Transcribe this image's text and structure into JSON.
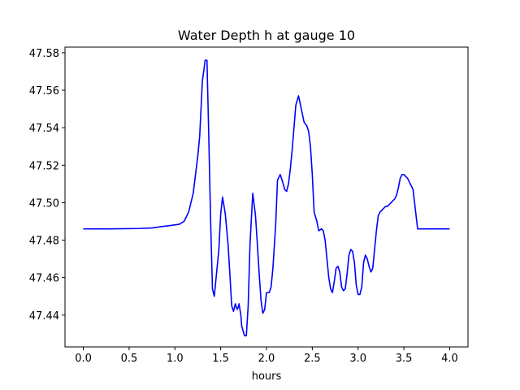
{
  "chart_data": {
    "type": "line",
    "title": "Water Depth h at gauge 10",
    "xlabel": "hours",
    "ylabel": "",
    "xlim": [
      -0.2,
      4.2
    ],
    "ylim": [
      47.423,
      47.583
    ],
    "xticks": [
      0.0,
      0.5,
      1.0,
      1.5,
      2.0,
      2.5,
      3.0,
      3.5,
      4.0
    ],
    "xtick_labels": [
      "0.0",
      "0.5",
      "1.0",
      "1.5",
      "2.0",
      "2.5",
      "3.0",
      "3.5",
      "4.0"
    ],
    "yticks": [
      47.44,
      47.46,
      47.48,
      47.5,
      47.52,
      47.54,
      47.56,
      47.58
    ],
    "ytick_labels": [
      "47.44",
      "47.46",
      "47.48",
      "47.50",
      "47.52",
      "47.54",
      "47.56",
      "47.58"
    ],
    "grid": false,
    "series": [
      {
        "color": "#0000ff",
        "x": [
          0.0,
          0.3,
          0.6,
          0.75,
          0.85,
          0.95,
          1.05,
          1.1,
          1.15,
          1.2,
          1.25,
          1.27,
          1.3,
          1.32,
          1.33,
          1.35,
          1.37,
          1.39,
          1.41,
          1.43,
          1.45,
          1.48,
          1.5,
          1.52,
          1.55,
          1.58,
          1.6,
          1.62,
          1.64,
          1.66,
          1.68,
          1.69,
          1.7,
          1.72,
          1.73,
          1.76,
          1.78,
          1.8,
          1.82,
          1.85,
          1.88,
          1.9,
          1.92,
          1.94,
          1.96,
          1.98,
          2.0,
          2.03,
          2.05,
          2.07,
          2.1,
          2.12,
          2.15,
          2.17,
          2.2,
          2.22,
          2.24,
          2.26,
          2.28,
          2.3,
          2.32,
          2.35,
          2.38,
          2.41,
          2.44,
          2.46,
          2.48,
          2.5,
          2.52,
          2.55,
          2.57,
          2.6,
          2.62,
          2.64,
          2.66,
          2.68,
          2.7,
          2.72,
          2.74,
          2.76,
          2.78,
          2.8,
          2.82,
          2.84,
          2.86,
          2.88,
          2.9,
          2.92,
          2.94,
          2.96,
          2.98,
          3.0,
          3.02,
          3.04,
          3.06,
          3.08,
          3.1,
          3.12,
          3.14,
          3.16,
          3.18,
          3.2,
          3.22,
          3.24,
          3.26,
          3.28,
          3.3,
          3.32,
          3.34,
          3.36,
          3.38,
          3.4,
          3.42,
          3.44,
          3.46,
          3.48,
          3.5,
          3.52,
          3.54,
          3.56,
          3.6,
          3.65,
          3.7,
          3.75,
          3.78,
          3.82,
          3.85,
          3.88,
          3.9,
          3.93,
          3.95,
          3.97,
          4.0
        ],
        "y": [
          47.486,
          47.486,
          47.4862,
          47.4865,
          47.4872,
          47.4878,
          47.4885,
          47.49,
          47.495,
          47.505,
          47.525,
          47.535,
          47.565,
          47.572,
          47.576,
          47.576,
          47.535,
          47.49,
          47.454,
          47.45,
          47.46,
          47.475,
          47.494,
          47.503,
          47.494,
          47.478,
          47.462,
          47.445,
          47.442,
          47.446,
          47.443,
          47.444,
          47.446,
          47.44,
          47.434,
          47.429,
          47.429,
          47.445,
          47.478,
          47.505,
          47.493,
          47.478,
          47.462,
          47.448,
          47.441,
          47.443,
          47.452,
          47.452,
          47.455,
          47.465,
          47.488,
          47.512,
          47.515,
          47.512,
          47.507,
          47.506,
          47.51,
          47.518,
          47.528,
          47.54,
          47.552,
          47.557,
          47.55,
          47.543,
          47.541,
          47.538,
          47.53,
          47.515,
          47.495,
          47.49,
          47.485,
          47.486,
          47.485,
          47.48,
          47.47,
          47.46,
          47.454,
          47.452,
          47.458,
          47.465,
          47.466,
          47.463,
          47.455,
          47.453,
          47.454,
          47.462,
          47.472,
          47.475,
          47.474,
          47.468,
          47.456,
          47.451,
          47.451,
          47.455,
          47.468,
          47.472,
          47.47,
          47.466,
          47.463,
          47.465,
          47.475,
          47.485,
          47.493,
          47.495,
          47.496,
          47.497,
          47.498,
          47.498,
          47.499,
          47.5,
          47.501,
          47.502,
          47.504,
          47.508,
          47.513,
          47.515,
          47.515,
          47.514,
          47.513,
          47.511,
          47.507,
          47.486,
          47.486,
          47.486,
          47.486,
          47.486,
          47.486,
          47.486,
          47.486,
          47.486,
          47.486,
          47.486,
          47.486
        ]
      }
    ]
  }
}
